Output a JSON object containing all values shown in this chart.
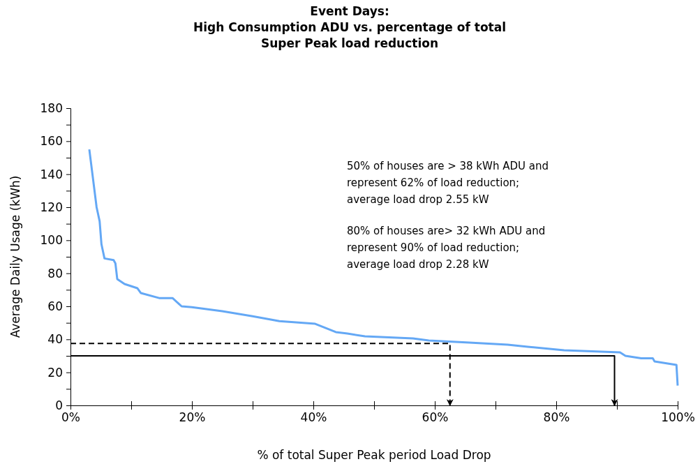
{
  "chart_data": {
    "type": "line",
    "title": "Event Days:\nHigh Consumption ADU vs. percentage of total\nSuper Peak load reduction",
    "xlabel": "% of total Super Peak period Load Drop",
    "ylabel": "Average Daily Usage  (kWh)",
    "xlim": [
      0,
      100
    ],
    "ylim": [
      0,
      180
    ],
    "xticks": [
      {
        "value": 0,
        "label": "0%"
      },
      {
        "value": 10,
        "label": null
      },
      {
        "value": 20,
        "label": "20%"
      },
      {
        "value": 30,
        "label": null
      },
      {
        "value": 40,
        "label": "40%"
      },
      {
        "value": 50,
        "label": null
      },
      {
        "value": 60,
        "label": "60%"
      },
      {
        "value": 70,
        "label": null
      },
      {
        "value": 80,
        "label": "80%"
      },
      {
        "value": 90,
        "label": null
      },
      {
        "value": 100,
        "label": "100%"
      }
    ],
    "yticks": [
      0,
      {
        "value": 10,
        "label": null
      },
      20,
      {
        "value": 30,
        "label": null
      },
      40,
      {
        "value": 50,
        "label": null
      },
      60,
      {
        "value": 70,
        "label": null
      },
      80,
      {
        "value": 90,
        "label": null
      },
      100,
      {
        "value": 110,
        "label": null
      },
      120,
      {
        "value": 130,
        "label": null
      },
      140,
      {
        "value": 150,
        "label": null
      },
      160,
      {
        "value": 170,
        "label": null
      },
      180
    ],
    "grid": false,
    "marker": "none",
    "series": [
      {
        "color": "#64a8f5",
        "line_style": "solid",
        "x": [
          3.1,
          4.3,
          4.8,
          5.1,
          5.6,
          7.1,
          7.4,
          7.7,
          8.9,
          11,
          11.6,
          14.6,
          16.8,
          18.3,
          20,
          25,
          30,
          33,
          34.4,
          40.3,
          43.7,
          45.6,
          48.5,
          56.4,
          59,
          65.7,
          72,
          75.3,
          81.3,
          90.5,
          91.4,
          94,
          95.9,
          96.2,
          99.8,
          100
        ],
        "values": [
          155,
          120,
          111.5,
          97.6,
          89,
          88,
          86,
          76.5,
          73.5,
          71,
          68,
          65,
          65,
          60,
          59.5,
          57,
          54,
          52,
          51,
          49.4,
          44.4,
          43.5,
          41.8,
          40.6,
          39.3,
          38,
          36.8,
          35.5,
          33.4,
          32.1,
          30,
          28.5,
          28.5,
          26.6,
          24.5,
          12
        ]
      },
      {
        "color": "#000000",
        "line_style": "dashed",
        "x": [
          0,
          62.5,
          62.5
        ],
        "values": [
          37.5,
          37.5,
          0
        ]
      },
      {
        "color": "#000000",
        "line_style": "solid",
        "x": [
          0,
          89.6,
          89.6
        ],
        "values": [
          30,
          30,
          0
        ]
      }
    ],
    "annotations": [
      "50% of houses are > 38 kWh ADU and\nrepresent 62% of load reduction;\naverage load drop 2.55 kW",
      "80% of houses are> 32 kWh ADU and\nrepresent 90% of load reduction;\naverage load drop 2.28 kW"
    ]
  }
}
